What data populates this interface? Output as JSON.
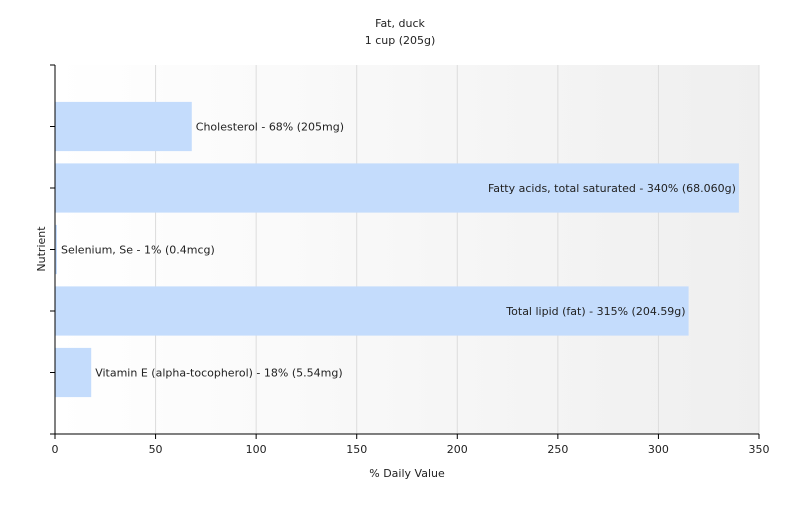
{
  "chart_data": {
    "type": "bar",
    "orientation": "horizontal",
    "title": "Fat, duck",
    "subtitle": "1 cup (205g)",
    "xlabel": "% Daily Value",
    "ylabel": "Nutrient",
    "xlim": [
      0,
      350
    ],
    "xticks": [
      0,
      50,
      100,
      150,
      200,
      250,
      300,
      350
    ],
    "grid": true,
    "bar_color": "#c4dcfc",
    "categories": [
      "Cholesterol",
      "Fatty acids, total saturated",
      "Selenium, Se",
      "Total lipid (fat)",
      "Vitamin E (alpha-tocopherol)"
    ],
    "values": [
      68,
      340,
      1,
      315,
      18
    ],
    "labels": [
      "Cholesterol - 68% (205mg)",
      "Fatty acids, total saturated - 340% (68.060g)",
      "Selenium, Se - 1% (0.4mcg)",
      "Total lipid (fat) - 315% (204.59g)",
      "Vitamin E (alpha-tocopherol) - 18% (5.54mg)"
    ]
  }
}
